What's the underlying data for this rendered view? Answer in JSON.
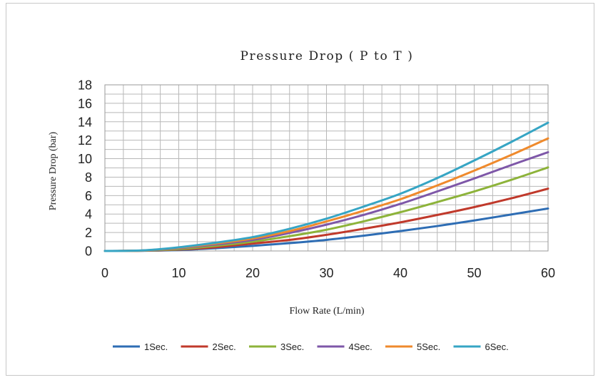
{
  "chart_data": {
    "type": "line",
    "title": "Pressure Drop ( P to T )",
    "xlabel": "Flow Rate (L/min)",
    "ylabel": "Pressure Drop (bar)",
    "xlim": [
      0,
      60
    ],
    "ylim": [
      0,
      18
    ],
    "xticks": [
      0,
      10,
      20,
      30,
      40,
      50,
      60
    ],
    "yticks": [
      0,
      2,
      4,
      6,
      8,
      10,
      12,
      14,
      16,
      18
    ],
    "grid": true,
    "legend_position": "bottom",
    "x": [
      0,
      5,
      10,
      15,
      20,
      25,
      30,
      35,
      40,
      45,
      50,
      55,
      60
    ],
    "series": [
      {
        "name": "1Sec.",
        "color": "#2E6DB4",
        "values": [
          0,
          0.02,
          0.1,
          0.3,
          0.55,
          0.85,
          1.2,
          1.65,
          2.15,
          2.7,
          3.3,
          3.95,
          4.6
        ]
      },
      {
        "name": "2Sec.",
        "color": "#C0392B",
        "values": [
          0,
          0.03,
          0.15,
          0.4,
          0.8,
          1.2,
          1.75,
          2.4,
          3.1,
          3.9,
          4.75,
          5.7,
          6.75
        ]
      },
      {
        "name": "3Sec.",
        "color": "#8DB33A",
        "values": [
          0,
          0.04,
          0.2,
          0.55,
          1.0,
          1.6,
          2.3,
          3.2,
          4.2,
          5.3,
          6.45,
          7.7,
          9.05
        ]
      },
      {
        "name": "4Sec.",
        "color": "#7E57A8",
        "values": [
          0,
          0.05,
          0.3,
          0.7,
          1.2,
          1.95,
          2.85,
          3.9,
          5.1,
          6.45,
          7.85,
          9.3,
          10.7
        ]
      },
      {
        "name": "5Sec.",
        "color": "#EF8A2C",
        "values": [
          0,
          0.05,
          0.35,
          0.8,
          1.35,
          2.15,
          3.2,
          4.35,
          5.6,
          7.1,
          8.7,
          10.4,
          12.2
        ]
      },
      {
        "name": "6Sec.",
        "color": "#36A5C4",
        "values": [
          0,
          0.06,
          0.4,
          0.9,
          1.5,
          2.4,
          3.5,
          4.8,
          6.2,
          7.9,
          9.8,
          11.8,
          13.9
        ]
      }
    ]
  }
}
